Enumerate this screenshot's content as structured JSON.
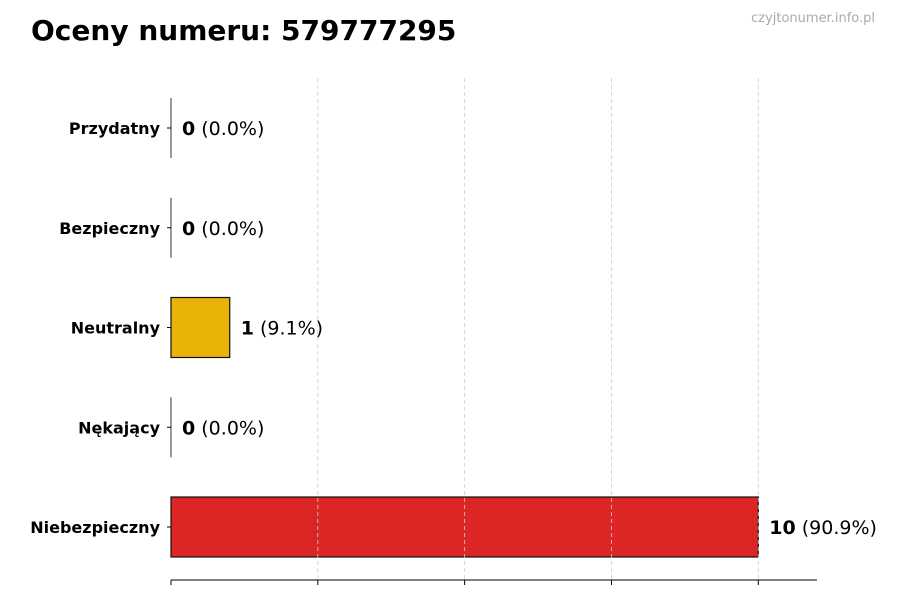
{
  "chart_data": {
    "type": "bar",
    "orientation": "horizontal",
    "title": "Oceny numeru: 579777295",
    "watermark": "czyjtonumer.info.pl",
    "categories": [
      "Przydatny",
      "Bezpieczny",
      "Neutralny",
      "Nękający",
      "Niebezpieczny"
    ],
    "values": [
      0,
      0,
      1,
      0,
      10
    ],
    "labels": [
      {
        "count": "0",
        "pct": "(0.0%)"
      },
      {
        "count": "0",
        "pct": "(0.0%)"
      },
      {
        "count": "1",
        "pct": "(9.1%)"
      },
      {
        "count": "0",
        "pct": "(0.0%)"
      },
      {
        "count": "10",
        "pct": "(90.9%)"
      }
    ],
    "colors": [
      "#2ca02c",
      "#1f77b4",
      "#eab308",
      "#9333ea",
      "#dc2626"
    ],
    "xlim": [
      0,
      11
    ],
    "xticks": [
      0,
      2.5,
      5,
      7.5,
      10
    ],
    "xtick_labels_shown": false,
    "grid": "x-dashed",
    "xlabel": "",
    "ylabel": ""
  }
}
